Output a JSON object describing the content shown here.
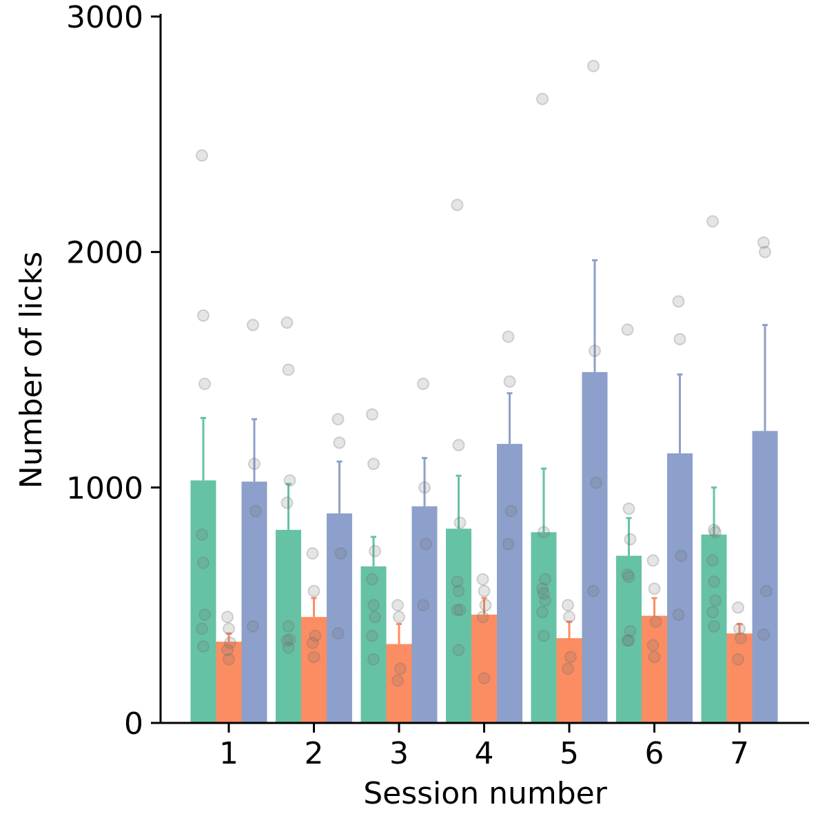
{
  "chart_data": {
    "type": "bar",
    "xlabel": "Session number",
    "ylabel": "Number of licks",
    "categories": [
      "1",
      "2",
      "3",
      "4",
      "5",
      "6",
      "7"
    ],
    "ylim": [
      0,
      3000
    ],
    "yticks": [
      0,
      1000,
      2000,
      3000
    ],
    "grid": false,
    "legend": "none",
    "series": [
      {
        "color": "#66c2a5",
        "values": [
          1030,
          820,
          665,
          825,
          810,
          710,
          800
        ],
        "error_upper": [
          1295,
          1015,
          790,
          1050,
          1080,
          870,
          1000
        ],
        "points": [
          [
            2410,
            1730,
            1440,
            800,
            680,
            460,
            400,
            325
          ],
          [
            1700,
            1500,
            1030,
            935,
            410,
            355,
            350,
            320
          ],
          [
            1310,
            1100,
            730,
            610,
            500,
            450,
            370,
            270
          ],
          [
            2200,
            1180,
            850,
            600,
            560,
            480,
            480,
            310
          ],
          [
            2650,
            810,
            610,
            570,
            550,
            520,
            470,
            370
          ],
          [
            1670,
            910,
            780,
            630,
            620,
            390,
            350,
            350
          ],
          [
            2130,
            820,
            810,
            690,
            600,
            520,
            470,
            410
          ]
        ]
      },
      {
        "color": "#fc8d62",
        "values": [
          345,
          450,
          335,
          460,
          360,
          455,
          380
        ],
        "error_upper": [
          380,
          530,
          420,
          530,
          430,
          530,
          420
        ],
        "points": [
          [
            450,
            400,
            340,
            310,
            270
          ],
          [
            720,
            560,
            370,
            340,
            280
          ],
          [
            500,
            450,
            230,
            180
          ],
          [
            610,
            560,
            500,
            450,
            190
          ],
          [
            500,
            450,
            280,
            230
          ],
          [
            690,
            570,
            430,
            330,
            280
          ],
          [
            490,
            400,
            360,
            270
          ]
        ]
      },
      {
        "color": "#8da0cb",
        "values": [
          1025,
          890,
          920,
          1185,
          1490,
          1145,
          1240
        ],
        "error_upper": [
          1290,
          1110,
          1125,
          1400,
          1965,
          1480,
          1690
        ],
        "points": [
          [
            1690,
            1100,
            900,
            410
          ],
          [
            1290,
            1190,
            720,
            380
          ],
          [
            1440,
            1000,
            760,
            500
          ],
          [
            1640,
            1450,
            900,
            760
          ],
          [
            2790,
            1580,
            1020,
            560
          ],
          [
            1790,
            1630,
            710,
            460
          ],
          [
            2040,
            2000,
            560,
            375
          ]
        ]
      }
    ]
  }
}
